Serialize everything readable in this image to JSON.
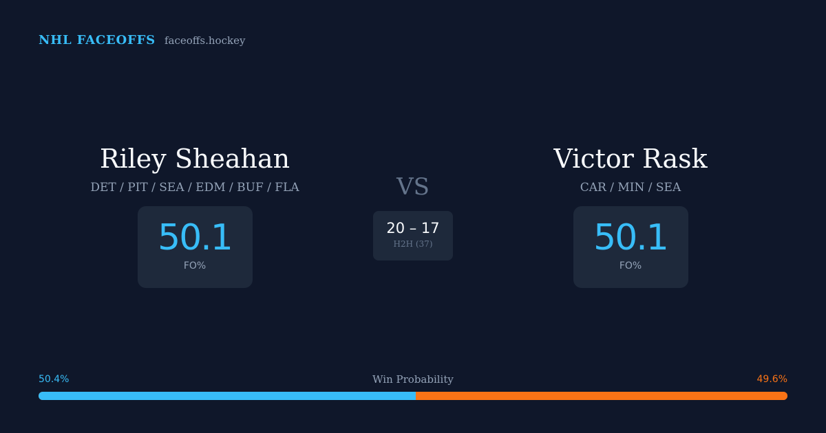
{
  "brand": {
    "title": "NHL FACEOFFS",
    "url": "faceoffs.hockey"
  },
  "player_left": {
    "name": "Riley Sheahan",
    "teams": "DET / PIT / SEA / EDM / BUF / FLA",
    "stat_value": "50.1",
    "stat_label": "FO%"
  },
  "player_right": {
    "name": "Victor Rask",
    "teams": "CAR / MIN / SEA",
    "stat_value": "50.1",
    "stat_label": "FO%"
  },
  "matchup": {
    "vs_label": "VS",
    "h2h_score": "20 – 17",
    "h2h_label": "H2H (37)"
  },
  "win_probability": {
    "label": "Win Probability",
    "left_text": "50.4%",
    "right_text": "49.6%",
    "left_fraction": 0.504,
    "left_color": "#38bdf8",
    "right_color": "#f97316"
  }
}
